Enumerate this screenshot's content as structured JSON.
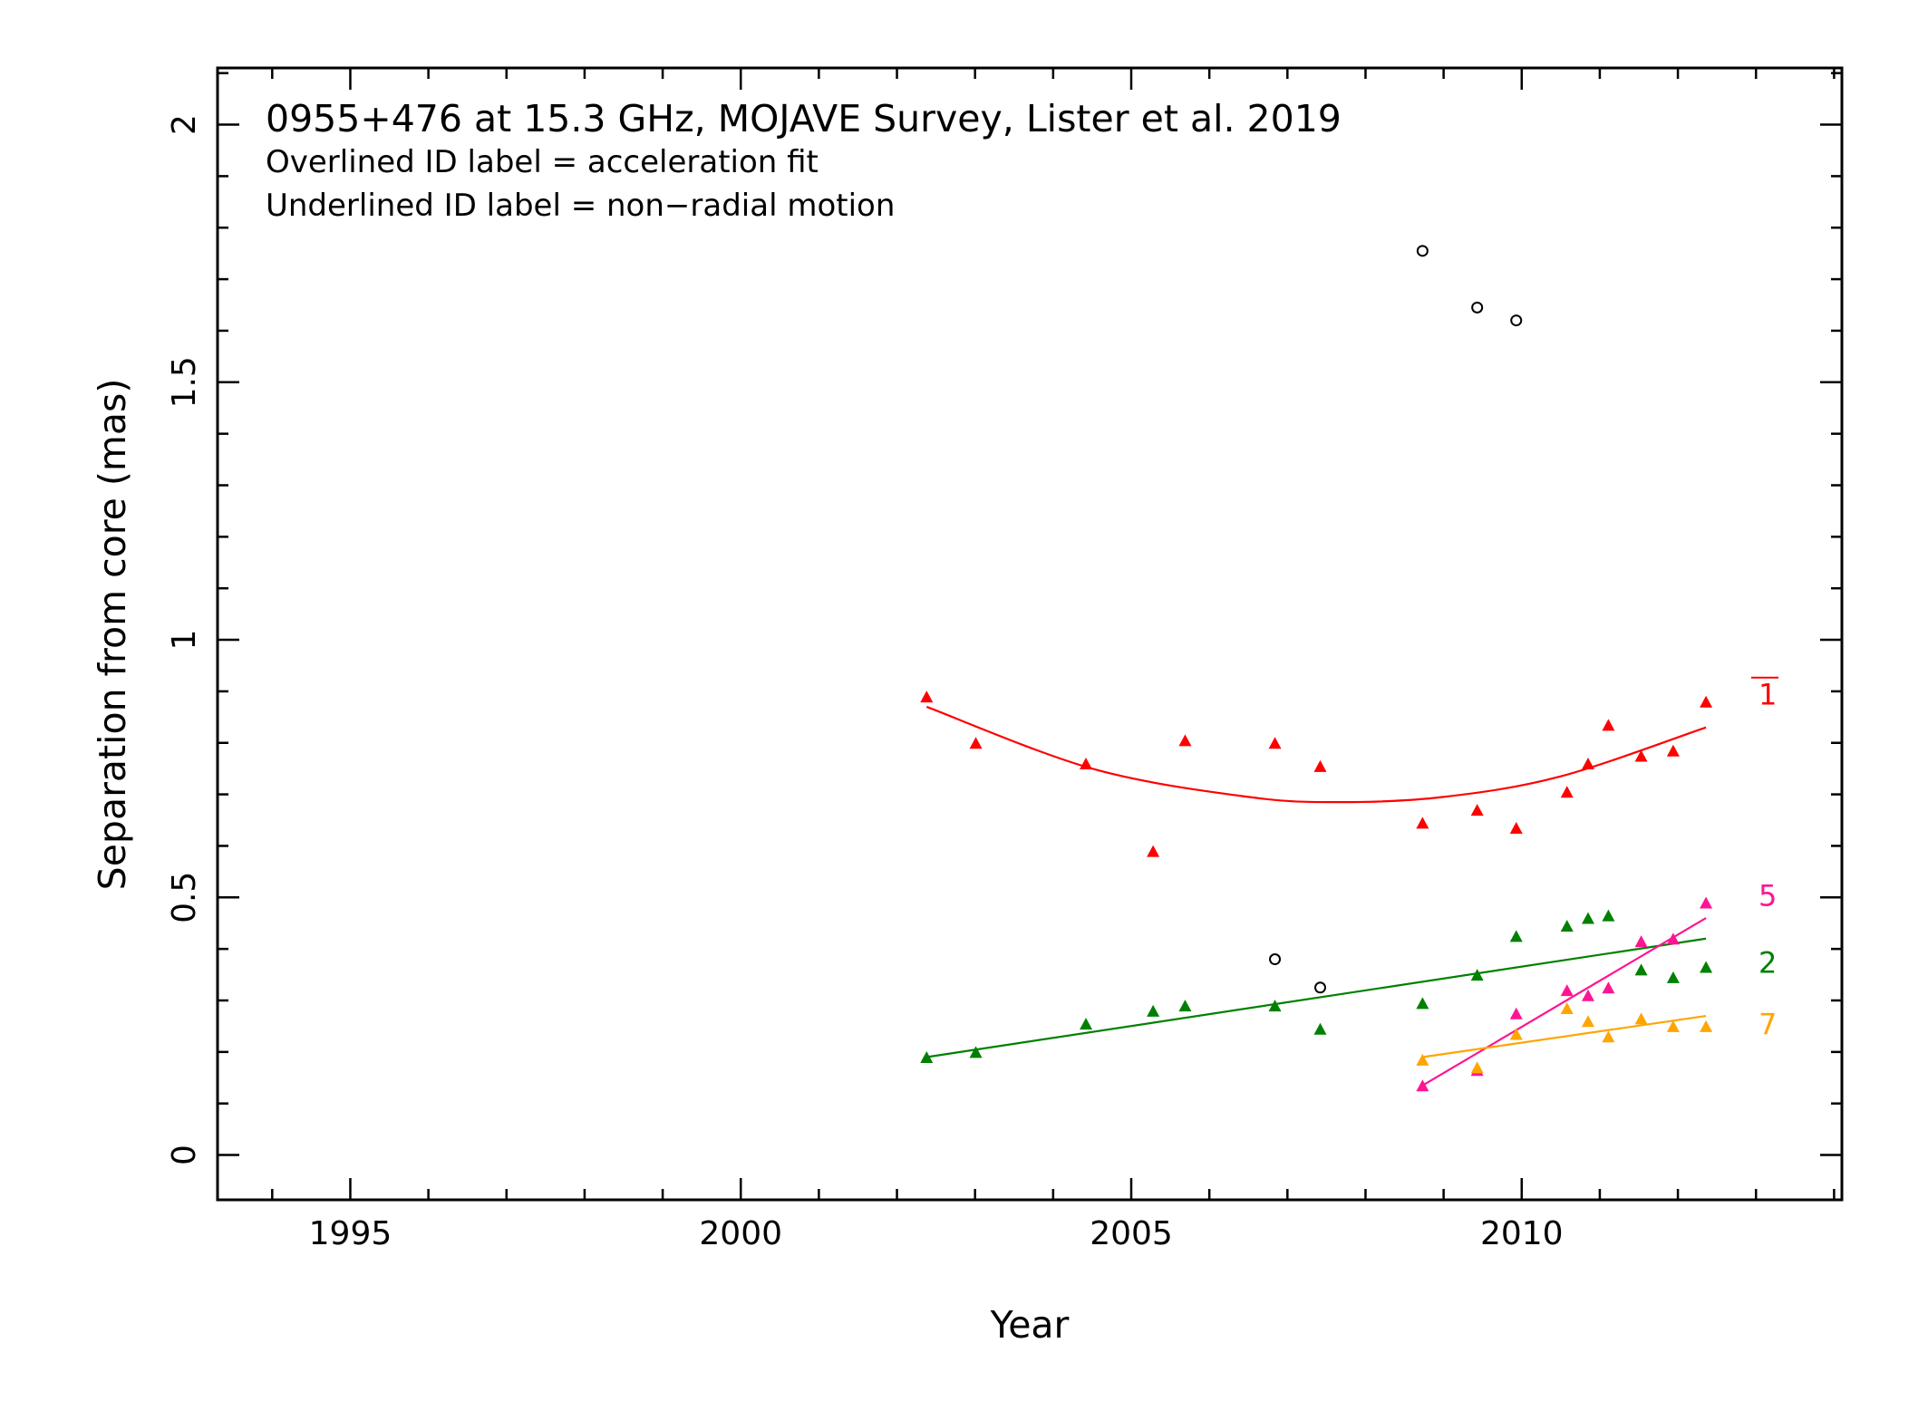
{
  "chart_data": {
    "type": "scatter",
    "title": "0955+476 at 15.3 GHz, MOJAVE Survey, Lister et al. 2019",
    "subtitle_lines": [
      "Overlined ID label = acceleration fit",
      "Underlined ID label = non−radial motion"
    ],
    "xlabel": "Year",
    "ylabel": "Separation from core (mas)",
    "xlim": [
      1993.3,
      2014.1
    ],
    "ylim": [
      -0.087,
      2.11
    ],
    "xticks_major": [
      1995,
      2000,
      2005,
      2010
    ],
    "xtick_labels": [
      "1995",
      "2000",
      "2005",
      "2010"
    ],
    "yticks_major": [
      0,
      0.5,
      1,
      1.5,
      2
    ],
    "ytick_labels": [
      "0",
      "0.5",
      "1",
      "1.5",
      "2"
    ],
    "grid": false,
    "series": [
      {
        "name": "1",
        "color": "#ff0000",
        "marker": "filled-triangle",
        "label_overlined": true,
        "x": [
          2002.38,
          2003.01,
          2004.42,
          2005.28,
          2005.69,
          2006.84,
          2007.42,
          2008.73,
          2009.43,
          2009.93,
          2010.58,
          2010.85,
          2011.11,
          2011.53,
          2011.94,
          2012.36
        ],
        "y": [
          0.89,
          0.8,
          0.76,
          0.59,
          0.805,
          0.8,
          0.755,
          0.645,
          0.67,
          0.635,
          0.705,
          0.76,
          0.835,
          0.775,
          0.785,
          0.88
        ],
        "fit": {
          "kind": "quadratic",
          "x": [
            2002.38,
            2004.5,
            2006.5,
            2007.7,
            2009.0,
            2010.5,
            2012.36
          ],
          "y": [
            0.87,
            0.75,
            0.695,
            0.685,
            0.695,
            0.735,
            0.83
          ]
        }
      },
      {
        "name": "2",
        "color": "#008000",
        "marker": "filled-triangle",
        "x": [
          2002.38,
          2003.01,
          2004.42,
          2005.28,
          2005.69,
          2006.84,
          2007.42,
          2008.73,
          2009.43,
          2009.93,
          2010.58,
          2010.85,
          2011.11,
          2011.53,
          2011.94,
          2012.36
        ],
        "y": [
          0.19,
          0.2,
          0.255,
          0.28,
          0.29,
          0.29,
          0.245,
          0.295,
          0.35,
          0.425,
          0.445,
          0.46,
          0.465,
          0.36,
          0.345,
          0.365
        ],
        "fit": {
          "kind": "linear",
          "x": [
            2002.38,
            2012.36
          ],
          "y": [
            0.19,
            0.42
          ]
        }
      },
      {
        "name": "5",
        "color": "#ff1493",
        "marker": "filled-triangle",
        "x": [
          2008.73,
          2009.43,
          2009.93,
          2010.58,
          2010.85,
          2011.11,
          2011.53,
          2011.94,
          2012.36
        ],
        "y": [
          0.135,
          0.165,
          0.275,
          0.32,
          0.31,
          0.325,
          0.415,
          0.42,
          0.49
        ],
        "fit": {
          "kind": "linear",
          "x": [
            2008.73,
            2012.36
          ],
          "y": [
            0.135,
            0.46
          ]
        }
      },
      {
        "name": "7",
        "color": "#ffa500",
        "marker": "filled-triangle",
        "x": [
          2008.73,
          2009.43,
          2009.93,
          2010.58,
          2010.85,
          2011.11,
          2011.53,
          2011.94,
          2012.36
        ],
        "y": [
          0.185,
          0.17,
          0.235,
          0.285,
          0.26,
          0.23,
          0.265,
          0.25,
          0.25
        ],
        "fit": {
          "kind": "linear",
          "x": [
            2008.73,
            2012.36
          ],
          "y": [
            0.19,
            0.27
          ]
        }
      },
      {
        "name": "",
        "color": "#000000",
        "marker": "open-circle",
        "x": [
          2006.84,
          2007.42,
          2008.73,
          2009.43,
          2009.93
        ],
        "y": [
          0.38,
          0.325,
          1.755,
          1.645,
          1.62
        ]
      }
    ]
  }
}
